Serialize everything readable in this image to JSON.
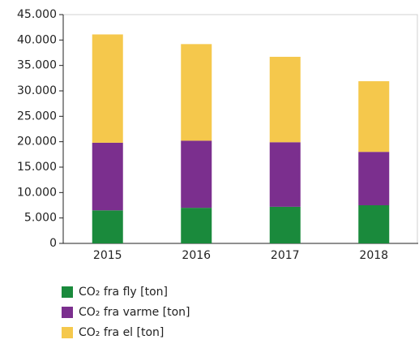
{
  "chart_data": {
    "type": "stacked_bar",
    "categories": [
      "2015",
      "2016",
      "2017",
      "2018"
    ],
    "series": [
      {
        "name": "CO₂ fra fly [ton]",
        "color": "#1a8a3c",
        "values": [
          6500,
          7000,
          7200,
          7500
        ]
      },
      {
        "name": "CO₂ fra varme [ton]",
        "color": "#7b2f8e",
        "values": [
          13300,
          13200,
          12700,
          10500
        ]
      },
      {
        "name": "CO₂ fra el [ton]",
        "color": "#f5c84c",
        "values": [
          21300,
          19000,
          16800,
          13900
        ]
      }
    ],
    "ylim": [
      0,
      45000
    ],
    "yticks": [
      0,
      {
        "value": 5000,
        "label": "5.000"
      },
      {
        "value": 10000,
        "label": "10.000"
      },
      {
        "value": 15000,
        "label": "15.000"
      },
      {
        "value": 20000,
        "label": "20.000"
      },
      {
        "value": 25000,
        "label": "25.000"
      },
      {
        "value": 30000,
        "label": "30.000"
      },
      {
        "value": 35000,
        "label": "35.000"
      },
      {
        "value": 40000,
        "label": "40.000"
      },
      {
        "value": 45000,
        "label": "45.000"
      }
    ],
    "legend": "bottom-left"
  }
}
